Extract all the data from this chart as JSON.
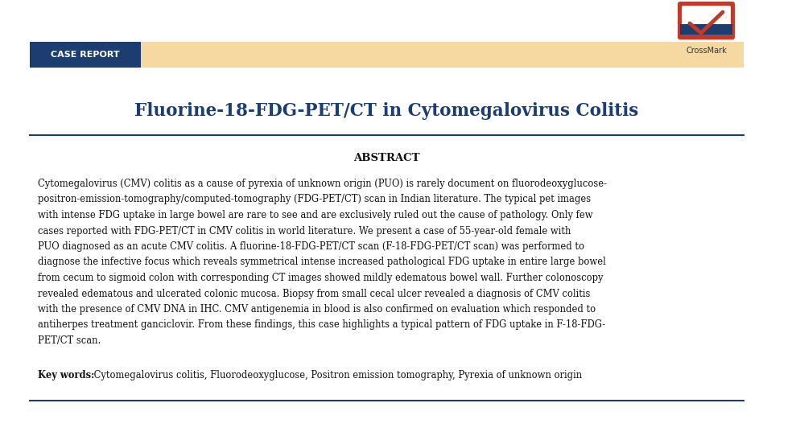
{
  "bg_color": "#ffffff",
  "title": "Fluorine-18-FDG-PET/CT in Cytomegalovirus Colitis",
  "title_color": "#1b3d6f",
  "title_fontsize": 15.5,
  "badge_label": "CASE REPORT",
  "badge_bg": "#1b3d6f",
  "badge_text_color": "#ffffff",
  "badge_bar_color": "#f5d9a0",
  "abstract_heading": "ABSTRACT",
  "abstract_lines": [
    "Cytomegalovirus (CMV) colitis as a cause of pyrexia of unknown origin (PUO) is rarely document on fluorodeoxyglucose-",
    "positron-emission-tomography/computed-tomography (FDG-PET/CT) scan in Indian literature. The typical pet images",
    "with intense FDG uptake in large bowel are rare to see and are exclusively ruled out the cause of pathology. Only few",
    "cases reported with FDG-PET/CT in CMV colitis in world literature. We present a case of 55-year-old female with",
    "PUO diagnosed as an acute CMV colitis. A fluorine-18-FDG-PET/CT scan (F-18-FDG-PET/CT scan) was performed to",
    "diagnose the infective focus which reveals symmetrical intense increased pathological FDG uptake in entire large bowel",
    "from cecum to sigmoid colon with corresponding CT images showed mildly edematous bowel wall. Further colonoscopy",
    "revealed edematous and ulcerated colonic mucosa. Biopsy from small cecal ulcer revealed a diagnosis of CMV colitis",
    "with the presence of CMV DNA in IHC. CMV antigenemia in blood is also confirmed on evaluation which responded to",
    "antiherpes treatment ganciclovir. From these findings, this case highlights a typical pattern of FDG uptake in F-18-FDG-",
    "PET/CT scan."
  ],
  "keywords_label": "Key words:",
  "keywords_text": " Cytomegalovirus colitis, Fluorodeoxyglucose, Positron emission tomography, Pyrexia of unknown origin",
  "text_color": "#111111",
  "line_color": "#1b3d6f",
  "body_fontsize": 8.3,
  "abstract_fontsize": 8.8,
  "crossmark_text_color": "#333333"
}
